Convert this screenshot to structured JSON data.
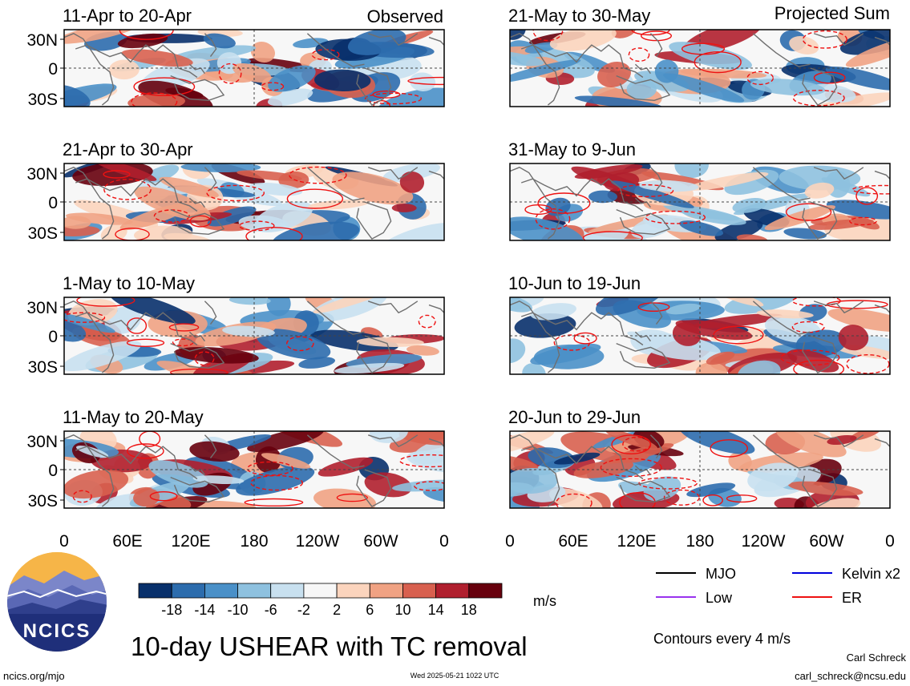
{
  "chart_data": {
    "type": "heatmap",
    "title": "10-day USHEAR with TC removal",
    "unit": "m/s",
    "columns": [
      {
        "label": "Observed",
        "panels": [
          {
            "period": "11-Apr to 20-Apr"
          },
          {
            "period": "21-Apr to 30-Apr"
          },
          {
            "period": "1-May to 10-May"
          },
          {
            "period": "11-May to 20-May"
          }
        ]
      },
      {
        "label": "Projected Sum",
        "panels": [
          {
            "period": "21-May to 30-May"
          },
          {
            "period": "31-May to 9-Jun"
          },
          {
            "period": "10-Jun to 19-Jun"
          },
          {
            "period": "20-Jun to 29-Jun"
          }
        ]
      }
    ],
    "lat_ticks": [
      "30N",
      "0",
      "30S"
    ],
    "lon_ticks": [
      "0",
      "60E",
      "120E",
      "180",
      "120W",
      "60W",
      "0"
    ],
    "colorbar": {
      "ticks": [
        "-18",
        "-14",
        "-10",
        "-6",
        "-2",
        "2",
        "6",
        "10",
        "14",
        "18"
      ],
      "colors": [
        "#08306b",
        "#2c6cad",
        "#4a90c8",
        "#8ec1df",
        "#c8e0ef",
        "#f7f7f7",
        "#fbd4bd",
        "#f0a283",
        "#d8604f",
        "#b01f2e",
        "#67000d"
      ]
    },
    "legend": [
      {
        "label": "MJO",
        "color": "#000000"
      },
      {
        "label": "Kelvin x2",
        "color": "#0000dd"
      },
      {
        "label": "Low",
        "color": "#9933ee"
      },
      {
        "label": "ER",
        "color": "#ee1111"
      }
    ],
    "contour_note": "Contours every 4 m/s"
  },
  "footer": {
    "left": "ncics.org/mjo",
    "timestamp": "Wed 2025-05-21 1022 UTC",
    "author": "Carl Schreck",
    "email": "carl_schreck@ncsu.edu"
  },
  "logo": {
    "text": "NCICS"
  }
}
